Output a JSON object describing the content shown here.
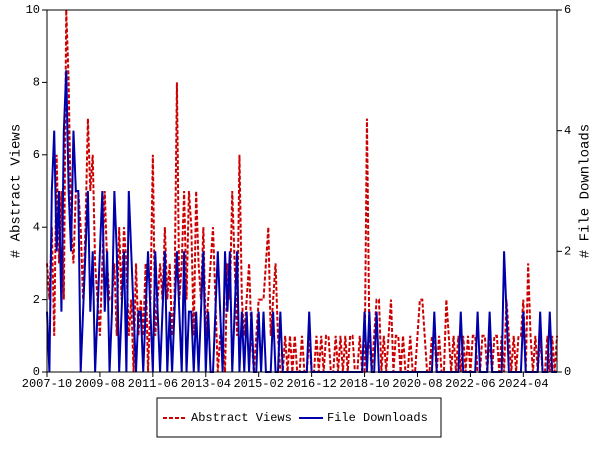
{
  "chart_data": {
    "type": "line",
    "y_label": "# Abstract Views",
    "y2_label": "# File Downloads",
    "x": [
      "2007-10",
      "2007-11",
      "2007-12",
      "2008-01",
      "2008-02",
      "2008-03",
      "2008-04",
      "2008-05",
      "2008-06",
      "2008-07",
      "2008-08",
      "2008-09",
      "2008-10",
      "2008-11",
      "2008-12",
      "2009-01",
      "2009-02",
      "2009-03",
      "2009-04",
      "2009-05",
      "2009-06",
      "2009-07",
      "2009-08",
      "2009-09",
      "2009-10",
      "2009-11",
      "2009-12",
      "2010-01",
      "2010-02",
      "2010-03",
      "2010-04",
      "2010-05",
      "2010-06",
      "2010-07",
      "2010-08",
      "2010-09",
      "2010-10",
      "2010-11",
      "2010-12",
      "2011-01",
      "2011-02",
      "2011-03",
      "2011-04",
      "2011-05",
      "2011-06",
      "2011-07",
      "2011-08",
      "2011-09",
      "2011-10",
      "2011-11",
      "2011-12",
      "2012-01",
      "2012-02",
      "2012-03",
      "2012-04",
      "2012-05",
      "2012-06",
      "2012-07",
      "2012-08",
      "2012-09",
      "2012-10",
      "2012-11",
      "2012-12",
      "2013-01",
      "2013-02",
      "2013-03",
      "2013-04",
      "2013-05",
      "2013-06",
      "2013-07",
      "2013-08",
      "2013-09",
      "2013-10",
      "2013-11",
      "2013-12",
      "2014-01",
      "2014-02",
      "2014-03",
      "2014-04",
      "2014-05",
      "2014-06",
      "2014-07",
      "2014-08",
      "2014-09",
      "2014-10",
      "2014-11",
      "2014-12",
      "2015-01",
      "2015-02",
      "2015-03",
      "2015-04",
      "2015-05",
      "2015-06",
      "2015-07",
      "2015-08",
      "2015-09",
      "2015-10",
      "2015-11",
      "2015-12",
      "2016-01",
      "2016-02",
      "2016-03",
      "2016-04",
      "2016-05",
      "2016-06",
      "2016-07",
      "2016-08",
      "2016-09",
      "2016-10",
      "2016-11",
      "2016-12",
      "2017-01",
      "2017-02",
      "2017-03",
      "2017-04",
      "2017-05",
      "2017-06",
      "2017-07",
      "2017-08",
      "2017-09",
      "2017-10",
      "2017-11",
      "2017-12",
      "2018-01",
      "2018-02",
      "2018-03",
      "2018-04",
      "2018-05",
      "2018-06",
      "2018-07",
      "2018-08",
      "2018-09",
      "2018-10",
      "2018-11",
      "2018-12",
      "2019-01",
      "2019-02",
      "2019-03",
      "2019-04",
      "2019-05",
      "2019-06",
      "2019-07",
      "2019-08",
      "2019-09",
      "2019-10",
      "2019-11",
      "2019-12",
      "2020-01",
      "2020-02",
      "2020-03",
      "2020-04",
      "2020-05",
      "2020-06",
      "2020-07",
      "2020-08",
      "2020-09",
      "2020-10",
      "2020-11",
      "2020-12",
      "2021-01",
      "2021-02",
      "2021-03",
      "2021-04",
      "2021-05",
      "2021-06",
      "2021-07",
      "2021-08",
      "2021-09",
      "2021-10",
      "2021-11",
      "2021-12",
      "2022-01",
      "2022-02",
      "2022-03",
      "2022-04",
      "2022-05",
      "2022-06",
      "2022-07",
      "2022-08",
      "2022-09",
      "2022-10",
      "2022-11",
      "2022-12",
      "2023-01",
      "2023-02",
      "2023-03",
      "2023-04",
      "2023-05",
      "2023-06",
      "2023-07",
      "2023-08",
      "2023-09",
      "2023-10",
      "2023-11",
      "2023-12",
      "2024-01",
      "2024-02",
      "2024-03",
      "2024-04",
      "2024-05",
      "2024-06",
      "2024-07",
      "2024-08",
      "2024-09",
      "2024-10",
      "2024-11",
      "2024-12",
      "2025-01",
      "2025-02",
      "2025-03",
      "2025-04",
      "2025-05",
      "2025-06"
    ],
    "series": [
      {
        "name": "Abstract Views",
        "color": "#cc0000",
        "dash": true,
        "values": [
          3,
          2,
          4,
          1,
          6,
          3,
          5,
          2,
          10,
          8,
          4,
          3,
          5,
          5,
          4,
          2,
          4,
          7,
          5,
          6,
          3,
          2,
          1,
          3,
          5,
          3,
          2,
          2,
          3,
          1,
          4,
          2,
          4,
          3,
          1,
          2,
          0,
          3,
          1,
          2,
          1,
          3,
          0,
          2,
          6,
          1,
          2,
          3,
          2,
          4,
          2,
          3,
          1,
          2,
          8,
          2,
          3,
          5,
          2,
          5,
          4,
          1,
          5,
          3,
          2,
          4,
          1,
          2,
          3,
          4,
          2,
          0,
          1,
          1,
          0,
          3,
          2,
          5,
          3,
          1,
          6,
          2,
          1,
          2,
          3,
          1,
          0,
          1,
          2,
          2,
          2,
          3,
          4,
          1,
          2,
          3,
          1,
          0,
          0,
          1,
          0,
          1,
          0,
          1,
          0,
          0,
          1,
          0,
          0,
          1,
          0,
          0,
          1,
          0,
          1,
          0,
          1,
          1,
          0,
          0,
          1,
          0,
          1,
          0,
          1,
          0,
          1,
          1,
          0,
          0,
          1,
          0,
          0,
          7,
          1,
          0,
          1,
          2,
          2,
          0,
          1,
          0,
          1,
          2,
          0,
          1,
          1,
          0,
          1,
          0,
          0,
          1,
          0,
          0,
          1,
          2,
          2,
          1,
          0,
          0,
          1,
          1,
          0,
          1,
          0,
          0,
          2,
          1,
          0,
          1,
          0,
          1,
          0,
          1,
          0,
          1,
          0,
          1,
          1,
          0,
          0,
          1,
          1,
          0,
          1,
          0,
          1,
          1,
          0,
          1,
          0,
          2,
          1,
          0,
          1,
          0,
          1,
          1,
          2,
          0,
          3,
          1,
          0,
          1,
          0,
          1,
          0,
          0,
          1,
          0,
          1,
          0,
          1
        ]
      },
      {
        "name": "File Downloads",
        "color": "#0000aa",
        "axis": "y2",
        "values": [
          1,
          0,
          3,
          4,
          2,
          3,
          1,
          4,
          5,
          3,
          2,
          4,
          3,
          3,
          0,
          1,
          2,
          3,
          1,
          2,
          0,
          1,
          2,
          3,
          1,
          2,
          0,
          1,
          3,
          2,
          0,
          1,
          2,
          0,
          3,
          2,
          1,
          0,
          1,
          1,
          0,
          1,
          2,
          1,
          0,
          2,
          1,
          0,
          1,
          2,
          0,
          1,
          0,
          1,
          2,
          1,
          0,
          2,
          0,
          1,
          1,
          0,
          1,
          0,
          1,
          2,
          0,
          1,
          0,
          0,
          1,
          2,
          1,
          0,
          2,
          1,
          2,
          0,
          1,
          2,
          0,
          1,
          0,
          1,
          0,
          1,
          0,
          0,
          1,
          0,
          1,
          0,
          0,
          0,
          1,
          0,
          0,
          1,
          0,
          0,
          0,
          0,
          0,
          0,
          0,
          0,
          0,
          0,
          0,
          1,
          0,
          0,
          0,
          0,
          0,
          0,
          0,
          0,
          0,
          0,
          0,
          0,
          0,
          0,
          0,
          0,
          0,
          0,
          0,
          0,
          0,
          0,
          1,
          0,
          1,
          0,
          0,
          1,
          0,
          0,
          0,
          0,
          0,
          0,
          0,
          0,
          0,
          0,
          0,
          0,
          0,
          0,
          0,
          0,
          0,
          0,
          0,
          0,
          0,
          0,
          0,
          1,
          0,
          0,
          0,
          0,
          0,
          0,
          0,
          0,
          0,
          0,
          1,
          0,
          0,
          0,
          0,
          0,
          0,
          1,
          0,
          0,
          0,
          0,
          1,
          0,
          0,
          0,
          0,
          0,
          2,
          1,
          0,
          0,
          0,
          0,
          0,
          0,
          1,
          0,
          0,
          0,
          0,
          0,
          0,
          1,
          0,
          0,
          0,
          1,
          0,
          0,
          0
        ]
      }
    ],
    "xlim": [
      "2007-10",
      "2025-06"
    ],
    "xticks": [
      "2007-10",
      "2009-08",
      "2011-06",
      "2013-04",
      "2015-02",
      "2016-12",
      "2018-10",
      "2020-08",
      "2022-06",
      "2024-04"
    ],
    "ylim": [
      0,
      10
    ],
    "yticks": [
      0,
      2,
      4,
      6,
      8,
      10
    ],
    "y2lim": [
      0,
      6
    ],
    "y2ticks": [
      0,
      2,
      4,
      6
    ],
    "legend": "bottom"
  }
}
